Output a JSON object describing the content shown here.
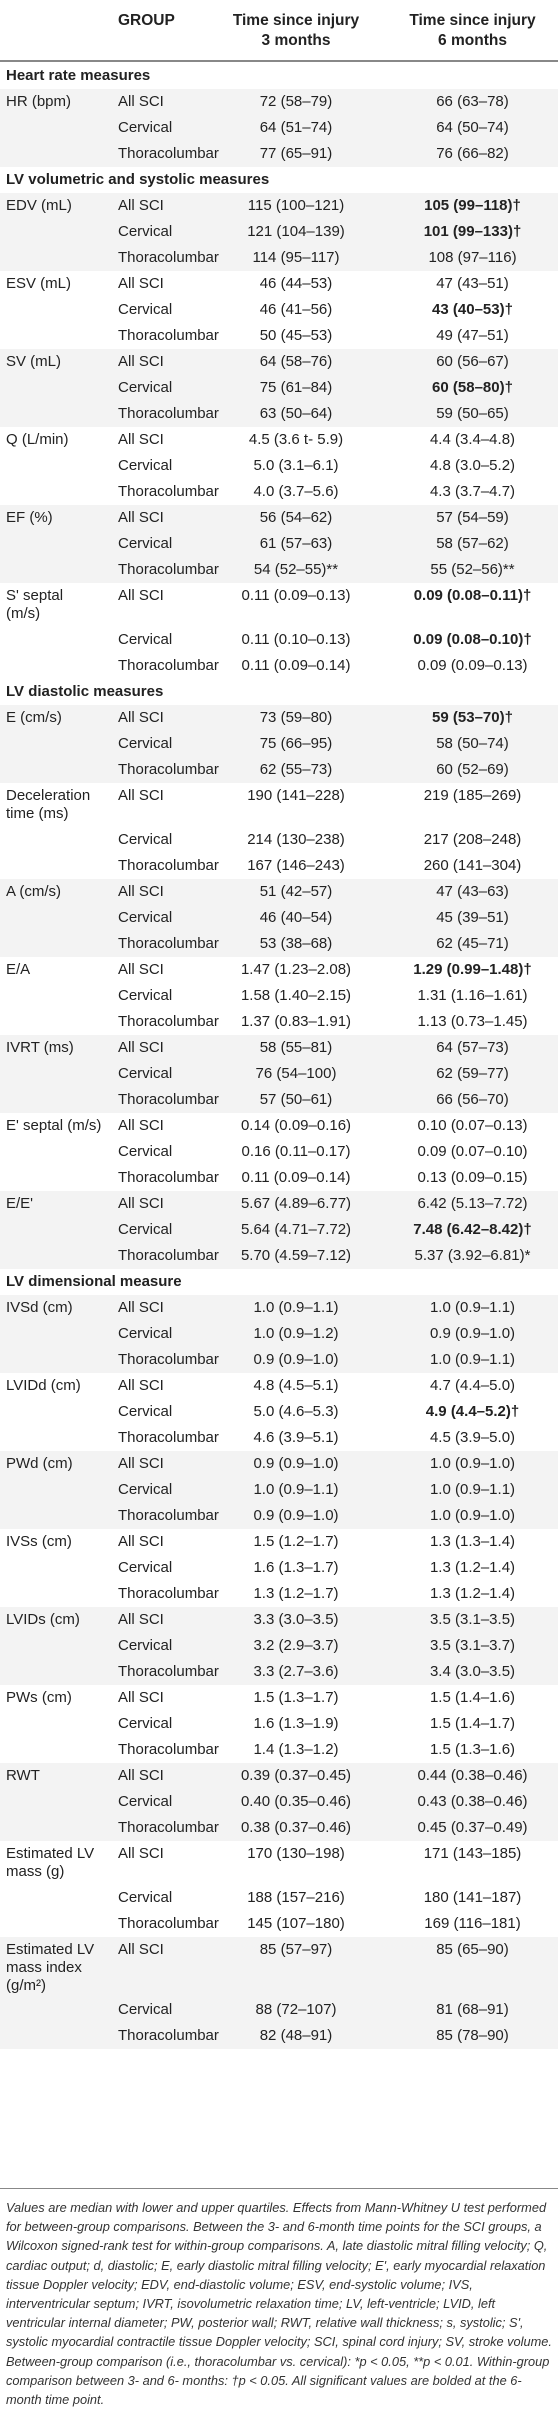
{
  "header": {
    "group": "GROUP",
    "col1_line1": "Time since injury",
    "col1_line2": "3 months",
    "col2_line1": "Time since injury",
    "col2_line2": "6 months"
  },
  "rows": [
    {
      "kind": "section",
      "measure": "Heart rate measures"
    },
    {
      "measure": "HR (bpm)",
      "group": "All SCI",
      "v1": "72 (58–79)",
      "v2": "66 (63–78)"
    },
    {
      "group": "Cervical",
      "v1": "64 (51–74)",
      "v2": "64 (50–74)"
    },
    {
      "group": "Thoracolumbar",
      "v1": "77 (65–91)",
      "v2": "76 (66–82)"
    },
    {
      "kind": "section",
      "measure": "LV volumetric and systolic measures"
    },
    {
      "measure": "EDV (mL)",
      "group": "All SCI",
      "v1": "115 (100–121)",
      "v2": "105 (99–118)†",
      "bold": true
    },
    {
      "group": "Cervical",
      "v1": "121 (104–139)",
      "v2": "101 (99–133)†",
      "bold": true
    },
    {
      "group": "Thoracolumbar",
      "v1": "114 (95–117)",
      "v2": "108 (97–116)"
    },
    {
      "measure": "ESV (mL)",
      "group": "All SCI",
      "v1": "46 (44–53)",
      "v2": "47 (43–51)"
    },
    {
      "group": "Cervical",
      "v1": "46 (41–56)",
      "v2": "43 (40–53)†",
      "bold": true
    },
    {
      "group": "Thoracolumbar",
      "v1": "50 (45–53)",
      "v2": "49 (47–51)"
    },
    {
      "measure": "SV (mL)",
      "group": "All SCI",
      "v1": "64 (58–76)",
      "v2": "60 (56–67)"
    },
    {
      "group": "Cervical",
      "v1": "75 (61–84)",
      "v2": "60 (58–80)†",
      "bold": true
    },
    {
      "group": "Thoracolumbar",
      "v1": "63 (50–64)",
      "v2": "59 (50–65)"
    },
    {
      "measure": "Q (L/min)",
      "group": "All SCI",
      "v1": "4.5 (3.6 t- 5.9)",
      "v2": "4.4 (3.4–4.8)"
    },
    {
      "group": "Cervical",
      "v1": "5.0 (3.1–6.1)",
      "v2": "4.8 (3.0–5.2)"
    },
    {
      "group": "Thoracolumbar",
      "v1": "4.0 (3.7–5.6)",
      "v2": "4.3 (3.7–4.7)"
    },
    {
      "measure": "EF (%)",
      "group": "All SCI",
      "v1": "56 (54–62)",
      "v2": "57 (54–59)"
    },
    {
      "group": "Cervical",
      "v1": "61 (57–63)",
      "v2": "58 (57–62)"
    },
    {
      "group": "Thoracolumbar",
      "v1": "54 (52–55)**",
      "v2": "55 (52–56)**"
    },
    {
      "measure": "S' septal",
      "measure2": "(m/s)",
      "group": "All SCI",
      "v1": "0.11 (0.09–0.13)",
      "v2": "0.09 (0.08–0.11)†",
      "bold": true,
      "tall": true
    },
    {
      "group": "Cervical",
      "v1": "0.11 (0.10–0.13)",
      "v2": "0.09 (0.08–0.10)†",
      "bold": true
    },
    {
      "group": "Thoracolumbar",
      "v1": "0.11 (0.09–0.14)",
      "v2": "0.09 (0.09–0.13)"
    },
    {
      "kind": "section",
      "measure": "LV diastolic measures"
    },
    {
      "measure": "E (cm/s)",
      "group": "All SCI",
      "v1": "73 (59–80)",
      "v2": "59 (53–70)†",
      "bold": true
    },
    {
      "group": "Cervical",
      "v1": "75 (66–95)",
      "v2": "58 (50–74)"
    },
    {
      "group": "Thoracolumbar",
      "v1": "62 (55–73)",
      "v2": "60 (52–69)"
    },
    {
      "measure": "Deceleration",
      "measure2": "time (ms)",
      "group": "All SCI",
      "v1": "190 (141–228)",
      "v2": "219 (185–269)",
      "tall": true
    },
    {
      "group": "Cervical",
      "v1": "214 (130–238)",
      "v2": "217 (208–248)"
    },
    {
      "group": "Thoracolumbar",
      "v1": "167 (146–243)",
      "v2": "260 (141–304)"
    },
    {
      "measure": "A (cm/s)",
      "group": "All SCI",
      "v1": "51 (42–57)",
      "v2": "47 (43–63)"
    },
    {
      "group": "Cervical",
      "v1": "46 (40–54)",
      "v2": "45 (39–51)"
    },
    {
      "group": "Thoracolumbar",
      "v1": "53 (38–68)",
      "v2": "62 (45–71)"
    },
    {
      "measure": "E/A",
      "group": "All SCI",
      "v1": "1.47 (1.23–2.08)",
      "v2": "1.29 (0.99–1.48)†",
      "bold": true
    },
    {
      "group": "Cervical",
      "v1": "1.58 (1.40–2.15)",
      "v2": "1.31 (1.16–1.61)"
    },
    {
      "group": "Thoracolumbar",
      "v1": "1.37 (0.83–1.91)",
      "v2": "1.13 (0.73–1.45)"
    },
    {
      "measure": "IVRT (ms)",
      "group": "All SCI",
      "v1": "58 (55–81)",
      "v2": "64 (57–73)"
    },
    {
      "group": "Cervical",
      "v1": "76 (54–100)",
      "v2": "62 (59–77)"
    },
    {
      "group": "Thoracolumbar",
      "v1": "57 (50–61)",
      "v2": "66 (56–70)"
    },
    {
      "measure": "E' septal (m/s)",
      "group": "All SCI",
      "v1": "0.14 (0.09–0.16)",
      "v2": "0.10 (0.07–0.13)"
    },
    {
      "group": "Cervical",
      "v1": "0.16 (0.11–0.17)",
      "v2": "0.09 (0.07–0.10)"
    },
    {
      "group": "Thoracolumbar",
      "v1": "0.11 (0.09–0.14)",
      "v2": "0.13 (0.09–0.15)"
    },
    {
      "measure": "E/E'",
      "group": "All SCI",
      "v1": "5.67 (4.89–6.77)",
      "v2": "6.42 (5.13–7.72)"
    },
    {
      "group": "Cervical",
      "v1": "5.64 (4.71–7.72)",
      "v2": "7.48 (6.42–8.42)†",
      "bold": true
    },
    {
      "group": "Thoracolumbar",
      "v1": "5.70 (4.59–7.12)",
      "v2": "5.37 (3.92–6.81)*"
    },
    {
      "kind": "section",
      "measure": "LV dimensional measure"
    },
    {
      "measure": "IVSd (cm)",
      "group": "All SCI",
      "v1": "1.0 (0.9–1.1)",
      "v2": "1.0 (0.9–1.1)"
    },
    {
      "group": "Cervical",
      "v1": "1.0 (0.9–1.2)",
      "v2": "0.9 (0.9–1.0)"
    },
    {
      "group": "Thoracolumbar",
      "v1": "0.9 (0.9–1.0)",
      "v2": "1.0 (0.9–1.1)"
    },
    {
      "measure": "LVIDd (cm)",
      "group": "All SCI",
      "v1": "4.8 (4.5–5.1)",
      "v2": "4.7 (4.4–5.0)"
    },
    {
      "group": "Cervical",
      "v1": "5.0 (4.6–5.3)",
      "v2": "4.9 (4.4–5.2)†",
      "bold": true
    },
    {
      "group": "Thoracolumbar",
      "v1": "4.6 (3.9–5.1)",
      "v2": "4.5 (3.9–5.0)"
    },
    {
      "measure": "PWd (cm)",
      "group": "All SCI",
      "v1": "0.9 (0.9–1.0)",
      "v2": "1.0 (0.9–1.0)"
    },
    {
      "group": "Cervical",
      "v1": "1.0 (0.9–1.1)",
      "v2": "1.0 (0.9–1.1)"
    },
    {
      "group": "Thoracolumbar",
      "v1": "0.9 (0.9–1.0)",
      "v2": "1.0 (0.9–1.0)"
    },
    {
      "measure": "IVSs (cm)",
      "group": "All SCI",
      "v1": "1.5 (1.2–1.7)",
      "v2": "1.3 (1.3–1.4)"
    },
    {
      "group": "Cervical",
      "v1": "1.6 (1.3–1.7)",
      "v2": "1.3 (1.2–1.4)"
    },
    {
      "group": "Thoracolumbar",
      "v1": "1.3 (1.2–1.7)",
      "v2": "1.3 (1.2–1.4)"
    },
    {
      "measure": "LVIDs (cm)",
      "group": "All SCI",
      "v1": "3.3 (3.0–3.5)",
      "v2": "3.5 (3.1–3.5)"
    },
    {
      "group": "Cervical",
      "v1": "3.2 (2.9–3.7)",
      "v2": "3.5 (3.1–3.7)"
    },
    {
      "group": "Thoracolumbar",
      "v1": "3.3 (2.7–3.6)",
      "v2": "3.4 (3.0–3.5)"
    },
    {
      "measure": "PWs (cm)",
      "group": "All SCI",
      "v1": "1.5 (1.3–1.7)",
      "v2": "1.5 (1.4–1.6)"
    },
    {
      "group": "Cervical",
      "v1": "1.6 (1.3–1.9)",
      "v2": "1.5 (1.4–1.7)"
    },
    {
      "group": "Thoracolumbar",
      "v1": "1.4 (1.3–1.2)",
      "v2": "1.5 (1.3–1.6)"
    },
    {
      "measure": "RWT",
      "group": "All SCI",
      "v1": "0.39 (0.37–0.45)",
      "v2": "0.44 (0.38–0.46)"
    },
    {
      "group": "Cervical",
      "v1": "0.40 (0.35–0.46)",
      "v2": "0.43 (0.38–0.46)"
    },
    {
      "group": "Thoracolumbar",
      "v1": "0.38 (0.37–0.46)",
      "v2": "0.45 (0.37–0.49)"
    },
    {
      "measure": "Estimated LV",
      "measure2": "mass (g)",
      "group": "All SCI",
      "v1": "170 (130–198)",
      "v2": "171 (143–185)",
      "tall": true
    },
    {
      "group": "Cervical",
      "v1": "188 (157–216)",
      "v2": "180 (141–187)"
    },
    {
      "group": "Thoracolumbar",
      "v1": "145 (107–180)",
      "v2": "169 (116–181)"
    },
    {
      "measure": "Estimated LV",
      "measure2": "mass index",
      "measure3": "(g/m²)",
      "group": "All SCI",
      "v1": "85 (57–97)",
      "v2": "85 (65–90)",
      "tall3": true
    },
    {
      "group": "Cervical",
      "v1": "88 (72–107)",
      "v2": "81 (68–91)"
    },
    {
      "group": "Thoracolumbar",
      "v1": "82 (48–91)",
      "v2": "85 (78–90)"
    }
  ],
  "footnote": "Values are median with lower and upper quartiles. Effects from Mann-Whitney U test performed for between-group comparisons. Between the 3- and 6-month time points for the SCI groups, a Wilcoxon signed-rank test for within-group comparisons. A, late diastolic mitral filling velocity; Q, cardiac output; d, diastolic; E, early diastolic mitral filling velocity; E', early myocardial relaxation tissue Doppler velocity; EDV, end-diastolic volume; ESV, end-systolic volume; IVS, interventricular septum; IVRT, isovolumetric relaxation time; LV, left-ventricle; LVID, left ventricular internal diameter; PW, posterior wall; RWT, relative wall thickness; s, systolic; S', systolic myocardial contractile tissue Doppler velocity; SCI, spinal cord injury; SV, stroke volume. Between-group comparison (i.e., thoracolumbar vs. cervical): *p < 0.05, **p < 0.01. Within-group comparison between 3- and 6- months: †p < 0.05. All significant values are bolded at the 6-month time point."
}
